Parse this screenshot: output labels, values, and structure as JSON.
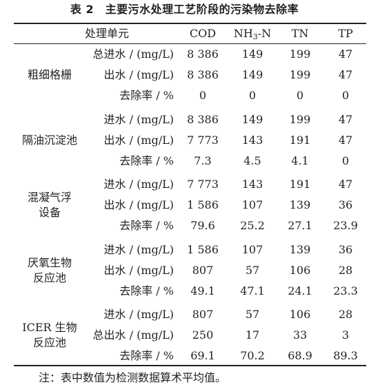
{
  "table": {
    "title": "表 2　主要污水处理工艺阶段的污染物去除率",
    "headers": {
      "unit": "处理单元",
      "cod": "COD",
      "nh3n": {
        "pre": "NH",
        "sub": "3",
        "post": "-N"
      },
      "tn": "TN",
      "tp": "TP"
    },
    "groups": [
      {
        "stage_lines": [
          "粗细格栅"
        ],
        "rows": [
          {
            "metric": "总进水 / (mg/L)",
            "cod": "8 386",
            "nh3n": "149",
            "tn": "199",
            "tp": "47"
          },
          {
            "metric": "出水 / (mg/L)",
            "cod": "8 386",
            "nh3n": "149",
            "tn": "199",
            "tp": "47"
          },
          {
            "metric": "去除率 / %",
            "cod": "0",
            "nh3n": "0",
            "tn": "0",
            "tp": "0"
          }
        ]
      },
      {
        "stage_lines": [
          "隔油沉淀池"
        ],
        "rows": [
          {
            "metric": "进水 / (mg/L)",
            "cod": "8 386",
            "nh3n": "149",
            "tn": "199",
            "tp": "47"
          },
          {
            "metric": "出水 / (mg/L)",
            "cod": "7 773",
            "nh3n": "143",
            "tn": "191",
            "tp": "47"
          },
          {
            "metric": "去除率 / %",
            "cod": "7.3",
            "nh3n": "4.5",
            "tn": "4.1",
            "tp": "0"
          }
        ]
      },
      {
        "stage_lines": [
          "混凝气浮",
          "设备"
        ],
        "rows": [
          {
            "metric": "进水 / (mg/L)",
            "cod": "7 773",
            "nh3n": "143",
            "tn": "191",
            "tp": "47"
          },
          {
            "metric": "出水 / (mg/L)",
            "cod": "1 586",
            "nh3n": "107",
            "tn": "139",
            "tp": "36"
          },
          {
            "metric": "去除率 / %",
            "cod": "79.6",
            "nh3n": "25.2",
            "tn": "27.1",
            "tp": "23.9"
          }
        ]
      },
      {
        "stage_lines": [
          "厌氧生物",
          "反应池"
        ],
        "rows": [
          {
            "metric": "进水 / (mg/L)",
            "cod": "1 586",
            "nh3n": "107",
            "tn": "139",
            "tp": "36"
          },
          {
            "metric": "出水 / (mg/L)",
            "cod": "807",
            "nh3n": "57",
            "tn": "106",
            "tp": "28"
          },
          {
            "metric": "去除率 / %",
            "cod": "49.1",
            "nh3n": "47.1",
            "tn": "24.1",
            "tp": "23.3"
          }
        ]
      },
      {
        "stage_lines": [
          "ICER 生物",
          "反应池"
        ],
        "rows": [
          {
            "metric": "进水 / (mg/L)",
            "cod": "807",
            "nh3n": "57",
            "tn": "106",
            "tp": "28"
          },
          {
            "metric": "总出水 / (mg/L)",
            "cod": "250",
            "nh3n": "17",
            "tn": "33",
            "tp": "3"
          },
          {
            "metric": "去除率 / %",
            "cod": "69.1",
            "nh3n": "70.2",
            "tn": "68.9",
            "tp": "89.3"
          }
        ]
      }
    ],
    "note": "注：表中数值为检测数据算术平均值。"
  }
}
